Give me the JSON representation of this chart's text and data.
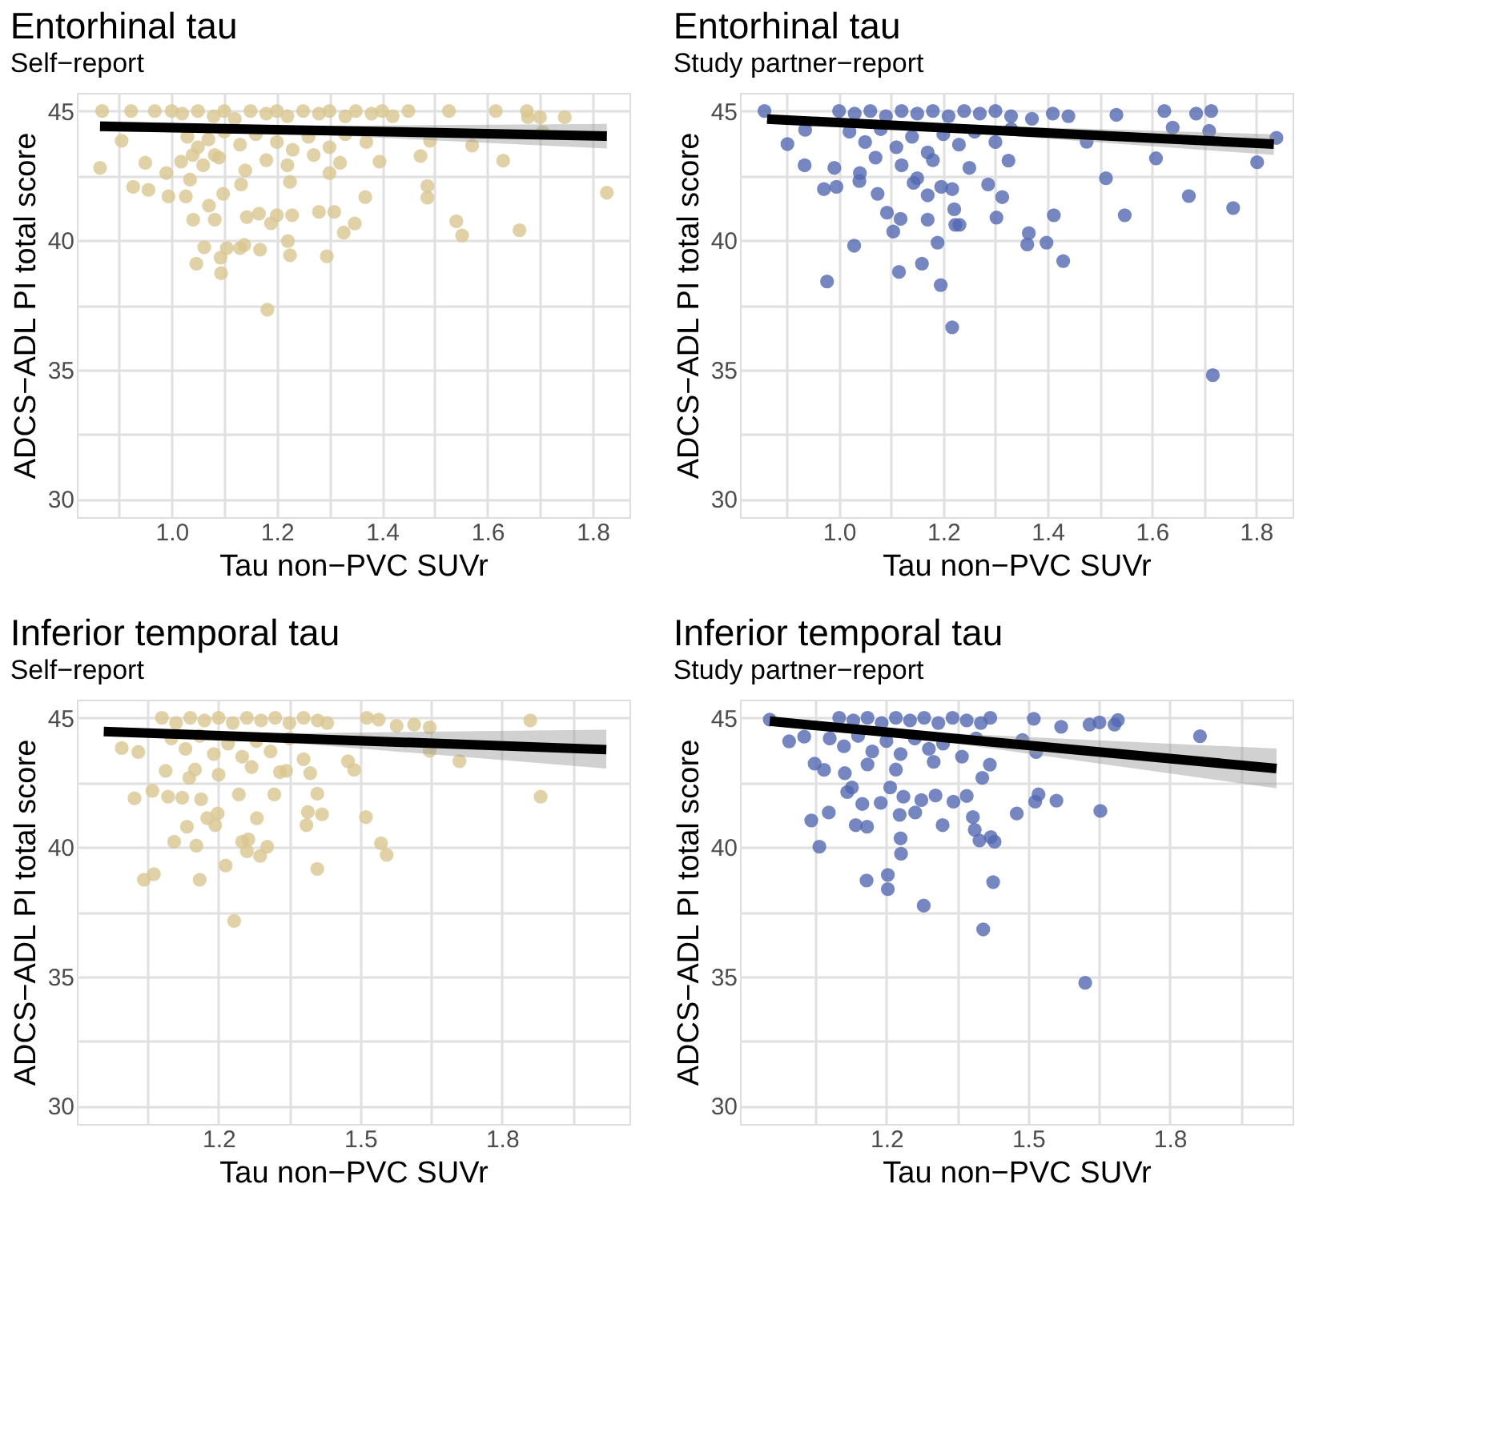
{
  "chart_data": [
    {
      "type": "scatter",
      "title": "Entorhinal tau",
      "subtitle": "Self−report",
      "xlabel": "Tau non−PVC SUVr",
      "ylabel": "ADCS−ADL PI total score",
      "xlim": [
        0.82,
        1.87
      ],
      "ylim": [
        29.3,
        45.7
      ],
      "xticks": [
        {
          "value": 0.9,
          "label": null
        },
        {
          "value": 1.0,
          "label": "1.0"
        },
        {
          "value": 1.1,
          "label": null
        },
        1.2,
        {
          "value": 1.3,
          "label": null
        },
        1.4,
        {
          "value": 1.5,
          "label": null
        },
        1.6,
        {
          "value": 1.7,
          "label": null
        },
        1.8
      ],
      "yticks": [
        30,
        {
          "value": 32.5,
          "label": null
        },
        35,
        {
          "value": 37.5,
          "label": null
        },
        40,
        {
          "value": 42.5,
          "label": null
        },
        45
      ],
      "grid": true,
      "series": [
        {
          "type": "scatter",
          "marker": "circle",
          "color": "#d9c690",
          "x": [
            0.864,
            0.868,
            0.923,
            0.905,
            0.927,
            0.95,
            0.956,
            0.968,
            0.994,
            0.99,
            1.018,
            1.035,
            1.027,
            1.041,
            1.047,
            1.062,
            1.071,
            1.082,
            1.093,
            1.094,
            1.105,
            1.098,
            1.082,
            1.132,
            1.13,
            1.138,
            1.143,
            1.166,
            1.168,
            1.182,
            1.189,
            1.2,
            1.221,
            1.225,
            1.229,
            1.225,
            1.28,
            1.295,
            1.309,
            1.327,
            1.348,
            1.368,
            1.395,
            1.473,
            1.486,
            1.486,
            1.491,
            1.527,
            1.541,
            1.552,
            1.571,
            1.616,
            1.63,
            1.661,
            1.675,
            1.677,
            1.7,
            1.705,
            1.747,
            1.827,
            1.0,
            1.02,
            1.05,
            1.08,
            1.1,
            1.12,
            1.15,
            1.18,
            1.2,
            1.22,
            1.25,
            1.28,
            1.3,
            1.33,
            1.35,
            1.38,
            1.4,
            1.42,
            1.45,
            1.03,
            1.05,
            1.07,
            1.1,
            1.13,
            1.16,
            1.2,
            1.23,
            1.26,
            1.3,
            1.33,
            1.37,
            1.04,
            1.09,
            1.18,
            1.27,
            1.32,
            1.14,
            1.06,
            1.22,
            1.3
          ],
          "values": [
            42.8,
            45,
            45,
            43.85,
            42.07,
            43.0,
            41.95,
            45,
            41.7,
            42.6,
            43.04,
            42.35,
            41.7,
            40.8,
            39.1,
            39.73,
            41.34,
            40.8,
            39.33,
            38.73,
            39.7,
            41.8,
            43.3,
            42.16,
            39.7,
            39.82,
            40.9,
            41.03,
            39.64,
            37.32,
            40.66,
            40.97,
            39.97,
            39.42,
            40.97,
            42.26,
            41.1,
            39.38,
            41.1,
            40.3,
            40.65,
            41.67,
            43.04,
            43.26,
            42.1,
            41.65,
            43.85,
            45,
            40.74,
            40.19,
            43.66,
            45,
            43.08,
            40.39,
            45,
            44.76,
            44.76,
            44.18,
            44.76,
            41.84,
            45,
            44.9,
            45,
            44.8,
            45,
            44.7,
            45,
            44.9,
            45,
            44.8,
            45,
            44.9,
            45,
            44.8,
            45,
            44.9,
            45,
            44.8,
            45,
            44.0,
            43.6,
            43.9,
            44.2,
            43.7,
            44.1,
            43.8,
            43.5,
            44.0,
            43.6,
            44.1,
            43.8,
            43.3,
            43.2,
            43.1,
            43.3,
            43.0,
            42.7,
            42.9,
            42.9,
            42.6
          ]
        },
        {
          "type": "line",
          "marker": "none",
          "color": "#000000",
          "x": [
            0.864,
            1.2,
            1.827
          ],
          "values": [
            44.41,
            44.28,
            44.03
          ],
          "lower": [
            44.2,
            44.15,
            43.55
          ],
          "upper": [
            44.62,
            44.41,
            44.5
          ]
        }
      ]
    },
    {
      "type": "scatter",
      "title": "Entorhinal tau",
      "subtitle": "Study partner−report",
      "xlabel": "Tau non−PVC SUVr",
      "ylabel": "ADCS−ADL PI total score",
      "xlim": [
        0.81,
        1.87
      ],
      "ylim": [
        29.3,
        45.7
      ],
      "xticks": [
        {
          "value": 0.9,
          "label": null
        },
        {
          "value": 1.0,
          "label": "1.0"
        },
        {
          "value": 1.1,
          "label": null
        },
        1.2,
        {
          "value": 1.3,
          "label": null
        },
        1.4,
        {
          "value": 1.5,
          "label": null
        },
        1.6,
        {
          "value": 1.7,
          "label": null
        },
        1.8
      ],
      "yticks": [
        30,
        {
          "value": 32.5,
          "label": null
        },
        35,
        {
          "value": 37.5,
          "label": null
        },
        40,
        {
          "value": 42.5,
          "label": null
        },
        45
      ],
      "grid": true,
      "series": [
        {
          "type": "scatter",
          "marker": "circle",
          "color": "#5268b0",
          "x": [
            0.857,
            0.935,
            0.901,
            0.934,
            0.971,
            0.977,
            0.995,
            0.991,
            1.029,
            1.039,
            1.074,
            1.092,
            1.104,
            1.115,
            1.118,
            1.143,
            1.159,
            1.17,
            1.17,
            1.189,
            1.195,
            1.196,
            1.217,
            1.221,
            1.223,
            1.231,
            1.217,
            1.286,
            1.302,
            1.313,
            1.325,
            1.364,
            1.361,
            1.398,
            1.412,
            1.43,
            1.475,
            1.512,
            1.532,
            1.548,
            1.608,
            1.624,
            1.64,
            1.671,
            1.685,
            1.71,
            1.714,
            1.717,
            1.756,
            1.802,
            1.839,
            1.0,
            1.03,
            1.06,
            1.09,
            1.12,
            1.15,
            1.18,
            1.21,
            1.24,
            1.27,
            1.3,
            1.33,
            1.37,
            1.41,
            1.44,
            1.02,
            1.05,
            1.08,
            1.11,
            1.14,
            1.17,
            1.2,
            1.23,
            1.26,
            1.3,
            1.33,
            1.07,
            1.12,
            1.18,
            1.25,
            1.04,
            1.15
          ],
          "values": [
            45,
            44.27,
            43.72,
            42.9,
            41.98,
            38.41,
            42.07,
            42.8,
            39.79,
            42.29,
            41.8,
            41.07,
            40.34,
            38.78,
            40.83,
            42.22,
            39.1,
            40.8,
            41.74,
            39.91,
            38.27,
            42.07,
            36.64,
            41.2,
            40.6,
            40.6,
            41.98,
            42.16,
            40.88,
            41.67,
            43.08,
            40.28,
            39.84,
            39.91,
            40.97,
            39.2,
            43.81,
            42.4,
            44.85,
            40.97,
            43.17,
            45,
            44.36,
            41.71,
            44.9,
            44.23,
            45,
            34.79,
            41.25,
            43.02,
            43.96,
            45,
            44.9,
            45,
            44.8,
            45,
            44.9,
            45,
            44.8,
            45,
            44.9,
            45,
            44.8,
            44.7,
            44.9,
            44.8,
            44.2,
            43.8,
            44.3,
            43.6,
            44.0,
            43.4,
            44.1,
            43.7,
            44.2,
            43.8,
            44.3,
            43.2,
            42.9,
            43.1,
            42.8,
            42.6,
            42.4
          ]
        },
        {
          "type": "line",
          "marker": "none",
          "color": "#000000",
          "x": [
            0.862,
            1.2,
            1.834
          ],
          "values": [
            44.69,
            44.35,
            43.72
          ],
          "lower": [
            44.5,
            44.22,
            43.3
          ],
          "upper": [
            44.88,
            44.48,
            44.1
          ]
        }
      ]
    },
    {
      "type": "scatter",
      "title": "Inferior temporal tau",
      "subtitle": "Self−report",
      "xlabel": "Tau non−PVC SUVr",
      "ylabel": "ADCS−ADL PI total score",
      "xlim": [
        0.9,
        2.07
      ],
      "ylim": [
        29.3,
        45.7
      ],
      "xticks": [
        {
          "value": 1.05,
          "label": null
        },
        1.2,
        {
          "value": 1.35,
          "label": null
        },
        1.5,
        {
          "value": 1.65,
          "label": null
        },
        1.8,
        {
          "value": 1.95,
          "label": null
        }
      ],
      "yticks": [
        30,
        {
          "value": 32.5,
          "label": null
        },
        35,
        {
          "value": 37.5,
          "label": null
        },
        40,
        {
          "value": 42.5,
          "label": null
        },
        45
      ],
      "grid": true,
      "series": [
        {
          "type": "scatter",
          "marker": "circle",
          "color": "#d9c690",
          "x": [
            0.995,
            1.022,
            1.03,
            1.042,
            1.063,
            1.06,
            1.088,
            1.093,
            1.106,
            1.123,
            1.133,
            1.138,
            1.153,
            1.16,
            1.163,
            1.176,
            1.193,
            1.198,
            1.215,
            1.233,
            1.243,
            1.25,
            1.263,
            1.26,
            1.281,
            1.288,
            1.303,
            1.318,
            1.343,
            1.386,
            1.389,
            1.409,
            1.409,
            1.419,
            1.394,
            1.474,
            1.487,
            1.512,
            1.514,
            1.539,
            1.544,
            1.556,
            1.577,
            1.614,
            1.647,
            1.647,
            1.71,
            1.86,
            1.882,
            1.08,
            1.11,
            1.14,
            1.17,
            1.2,
            1.23,
            1.26,
            1.29,
            1.32,
            1.35,
            1.38,
            1.41,
            1.43,
            1.1,
            1.13,
            1.16,
            1.19,
            1.22,
            1.25,
            1.28,
            1.31,
            1.35,
            1.38,
            1.15,
            1.2,
            1.27,
            1.33
          ],
          "values": [
            43.83,
            41.89,
            43.68,
            38.74,
            38.96,
            42.18,
            42.95,
            41.95,
            40.21,
            41.91,
            40.79,
            42.68,
            40.06,
            38.74,
            41.85,
            41.12,
            40.85,
            41.3,
            39.29,
            37.15,
            42.04,
            40.21,
            40.3,
            39.84,
            41.12,
            39.66,
            40.02,
            42.04,
            42.95,
            40.85,
            41.36,
            39.16,
            42.07,
            41.27,
            42.86,
            43.32,
            42.99,
            41.16,
            45,
            44.93,
            40.15,
            39.7,
            44.69,
            44.74,
            44.63,
            43.72,
            43.32,
            44.9,
            41.95,
            45,
            44.8,
            45,
            44.9,
            45,
            44.8,
            45,
            44.9,
            45,
            44.8,
            45,
            44.9,
            44.8,
            44.2,
            43.8,
            44.3,
            43.6,
            44.0,
            43.5,
            44.1,
            43.7,
            44.2,
            43.4,
            43.0,
            42.8,
            43.1,
            42.9
          ]
        },
        {
          "type": "line",
          "marker": "none",
          "color": "#000000",
          "x": [
            0.957,
            1.25,
            2.021
          ],
          "values": [
            44.47,
            44.28,
            43.77
          ],
          "lower": [
            44.3,
            44.18,
            43.04
          ],
          "upper": [
            44.64,
            44.38,
            44.54
          ]
        }
      ]
    },
    {
      "type": "scatter",
      "title": "Inferior temporal tau",
      "subtitle": "Study partner−report",
      "xlabel": "Tau non−PVC SUVr",
      "ylabel": "ADCS−ADL PI total score",
      "xlim": [
        0.89,
        2.06
      ],
      "ylim": [
        29.3,
        45.7
      ],
      "xticks": [
        {
          "value": 1.05,
          "label": null
        },
        1.2,
        {
          "value": 1.35,
          "label": null
        },
        1.5,
        {
          "value": 1.65,
          "label": null
        },
        1.8,
        {
          "value": 1.95,
          "label": null
        }
      ],
      "yticks": [
        30,
        {
          "value": 32.5,
          "label": null
        },
        35,
        {
          "value": 37.5,
          "label": null
        },
        40,
        {
          "value": 42.5,
          "label": null
        },
        45
      ],
      "grid": true,
      "series": [
        {
          "type": "scatter",
          "marker": "circle",
          "color": "#5268b0",
          "x": [
            0.953,
            0.994,
            1.026,
            1.041,
            1.048,
            1.058,
            1.068,
            1.078,
            1.112,
            1.117,
            1.127,
            1.135,
            1.149,
            1.159,
            1.158,
            1.188,
            1.203,
            1.203,
            1.208,
            1.228,
            1.23,
            1.231,
            1.236,
            1.261,
            1.274,
            1.279,
            1.304,
            1.319,
            1.342,
            1.37,
            1.383,
            1.387,
            1.397,
            1.405,
            1.403,
            1.419,
            1.421,
            1.426,
            1.429,
            1.476,
            1.488,
            1.512,
            1.515,
            1.522,
            1.517,
            1.56,
            1.57,
            1.621,
            1.63,
            1.651,
            1.653,
            1.683,
            1.69,
            1.864,
            1.1,
            1.13,
            1.16,
            1.19,
            1.22,
            1.25,
            1.28,
            1.31,
            1.34,
            1.37,
            1.4,
            1.42,
            1.08,
            1.11,
            1.14,
            1.17,
            1.2,
            1.23,
            1.26,
            1.29,
            1.32,
            1.36,
            1.39,
            1.16,
            1.22,
            1.3
          ],
          "values": [
            44.93,
            44.09,
            44.27,
            41.03,
            43.23,
            40.02,
            42.99,
            41.34,
            42.86,
            42.13,
            42.31,
            40.85,
            41.67,
            40.79,
            38.71,
            41.71,
            38.93,
            38.38,
            42.31,
            41.25,
            40.34,
            39.75,
            41.95,
            41.34,
            41.82,
            37.74,
            42.0,
            40.85,
            41.76,
            41.98,
            41.16,
            40.67,
            40.26,
            36.82,
            42.68,
            43.19,
            40.39,
            38.65,
            40.21,
            41.3,
            44.14,
            44.96,
            41.76,
            42.04,
            43.68,
            41.8,
            44.65,
            34.76,
            44.74,
            44.82,
            41.4,
            44.74,
            44.91,
            44.29,
            45,
            44.9,
            45,
            44.8,
            45,
            44.9,
            45,
            44.8,
            45,
            44.9,
            44.8,
            45,
            44.2,
            43.9,
            44.3,
            43.7,
            44.1,
            43.6,
            44.2,
            43.8,
            44.0,
            43.5,
            44.2,
            43.2,
            43.0,
            43.3
          ]
        },
        {
          "type": "line",
          "marker": "none",
          "color": "#000000",
          "x": [
            0.953,
            1.25,
            2.026
          ],
          "values": [
            44.87,
            44.36,
            43.04
          ],
          "lower": [
            44.68,
            44.25,
            42.27
          ],
          "upper": [
            45.06,
            44.47,
            43.81
          ]
        }
      ]
    }
  ]
}
